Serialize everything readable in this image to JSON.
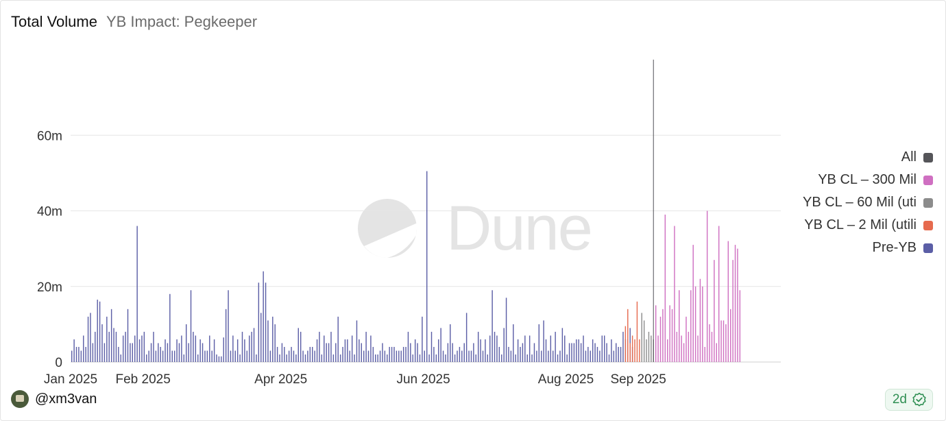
{
  "header": {
    "title": "Total Volume",
    "subtitle": "YB Impact: Pegkeeper"
  },
  "footer": {
    "username": "@xm3van",
    "freshness": "2d"
  },
  "watermark": "Dune",
  "colors": {
    "pre_yb": "#5b5ea6",
    "yb_2mil": "#e66a4e",
    "yb_60mil": "#8c8c8c",
    "yb_300mil": "#cf6fc1",
    "all": "#555559",
    "badge_green": "#2f8f53"
  },
  "chart_data": {
    "type": "bar",
    "title": "Total Volume",
    "subtitle": "YB Impact: Pegkeeper",
    "xlabel": "",
    "ylabel": "",
    "ylim": [
      0,
      80
    ],
    "y_unit": "m",
    "y_ticks": [
      {
        "value": 0,
        "label": "0"
      },
      {
        "value": 20,
        "label": "20m"
      },
      {
        "value": 40,
        "label": "40m"
      },
      {
        "value": 60,
        "label": "60m"
      }
    ],
    "x_range": [
      "2025-01-01",
      "2025-10-31"
    ],
    "x_ticks": [
      {
        "date": "2025-01-01",
        "label": "Jan 2025"
      },
      {
        "date": "2025-02-01",
        "label": "Feb 2025"
      },
      {
        "date": "2025-04-01",
        "label": "Apr 2025"
      },
      {
        "date": "2025-06-01",
        "label": "Jun 2025"
      },
      {
        "date": "2025-08-01",
        "label": "Aug 2025"
      },
      {
        "date": "2025-09-01",
        "label": "Sep 2025"
      }
    ],
    "grid": true,
    "legend_position": "right",
    "legend": [
      {
        "name": "All",
        "color": "#555559"
      },
      {
        "name": "YB CL – 300 Mil",
        "color": "#cf6fc1"
      },
      {
        "name": "YB CL – 60 Mil (uti",
        "color": "#8c8c8c"
      },
      {
        "name": "YB CL – 2 Mil (utili",
        "color": "#e66a4e"
      },
      {
        "name": "Pre-YB",
        "color": "#5b5ea6"
      }
    ],
    "series": [
      {
        "name": "Pre-YB",
        "color": "#5b5ea6",
        "start": "2025-01-01",
        "values": [
          3,
          6,
          4,
          4,
          3,
          7,
          4,
          12,
          13,
          5,
          8,
          16.5,
          16,
          10,
          5,
          12,
          8,
          14,
          9,
          8,
          4,
          2,
          7,
          8,
          14,
          5,
          5,
          7,
          36,
          6,
          7,
          8,
          2,
          3,
          5,
          8,
          3,
          5,
          4,
          3,
          6,
          5,
          18,
          3,
          3,
          6,
          5,
          7,
          2,
          10,
          5,
          19,
          8,
          7,
          2,
          6,
          5,
          3,
          3,
          7,
          3,
          6,
          2,
          1.5,
          1.5,
          6.5,
          14,
          19,
          3,
          7,
          3,
          6,
          2,
          8,
          6,
          3,
          7,
          8,
          9,
          2,
          21,
          13,
          24,
          21,
          11,
          3,
          12,
          10,
          4,
          2,
          5,
          4,
          2,
          3,
          4,
          3,
          2,
          9,
          8,
          3,
          2,
          3,
          4,
          4,
          3,
          6,
          8,
          2,
          7,
          5,
          5,
          8,
          2,
          5,
          12,
          2,
          4,
          6,
          6,
          3,
          7,
          2,
          11,
          6,
          5,
          3,
          8,
          3,
          7,
          4,
          2,
          2,
          3,
          5,
          3,
          2,
          4,
          4,
          4,
          3,
          3,
          3,
          4,
          4,
          8,
          5,
          2,
          6,
          5,
          2,
          12,
          3,
          50.5,
          2,
          8,
          4,
          2,
          6,
          9,
          3,
          2,
          5,
          10,
          5,
          2,
          3,
          4,
          3,
          5,
          13,
          3,
          3,
          5,
          2,
          8,
          6,
          3,
          6,
          2,
          7,
          19,
          8,
          7,
          4,
          2,
          9,
          17,
          4,
          3,
          10,
          2,
          6,
          4,
          5,
          7,
          2,
          7,
          2,
          5,
          3,
          10,
          3,
          11,
          6,
          3,
          7,
          3,
          8,
          2,
          3,
          9,
          7,
          2,
          5,
          5,
          5,
          6,
          6,
          5,
          7,
          3,
          4,
          3,
          6,
          5,
          4,
          3,
          7,
          7,
          5,
          2,
          6,
          3,
          5,
          4,
          4,
          8,
          6,
          6,
          9,
          4
        ]
      },
      {
        "name": "YB CL – 2 Mil (utili",
        "color": "#e66a4e",
        "start": "2025-08-26",
        "values": [
          9.5,
          14,
          5,
          7,
          6,
          16,
          6
        ]
      },
      {
        "name": "YB CL – 60 Mil (uti",
        "color": "#8c8c8c",
        "start": "2025-09-02",
        "values": [
          13,
          11,
          6,
          8,
          7,
          6
        ]
      },
      {
        "name": "YB CL – 300 Mil",
        "color": "#cf6fc1",
        "start": "2025-09-08",
        "values": [
          15,
          7,
          12,
          14,
          39,
          6,
          15,
          14,
          36,
          8,
          19,
          7,
          5,
          12,
          8,
          19,
          31,
          20,
          7,
          22,
          20,
          4,
          40,
          10,
          8,
          27,
          5,
          36,
          11,
          11,
          10,
          32,
          14,
          27,
          31,
          30,
          19
        ]
      },
      {
        "name": "All",
        "color": "#555559",
        "bars": [
          {
            "date": "2025-09-07",
            "value": 80
          }
        ]
      }
    ]
  }
}
